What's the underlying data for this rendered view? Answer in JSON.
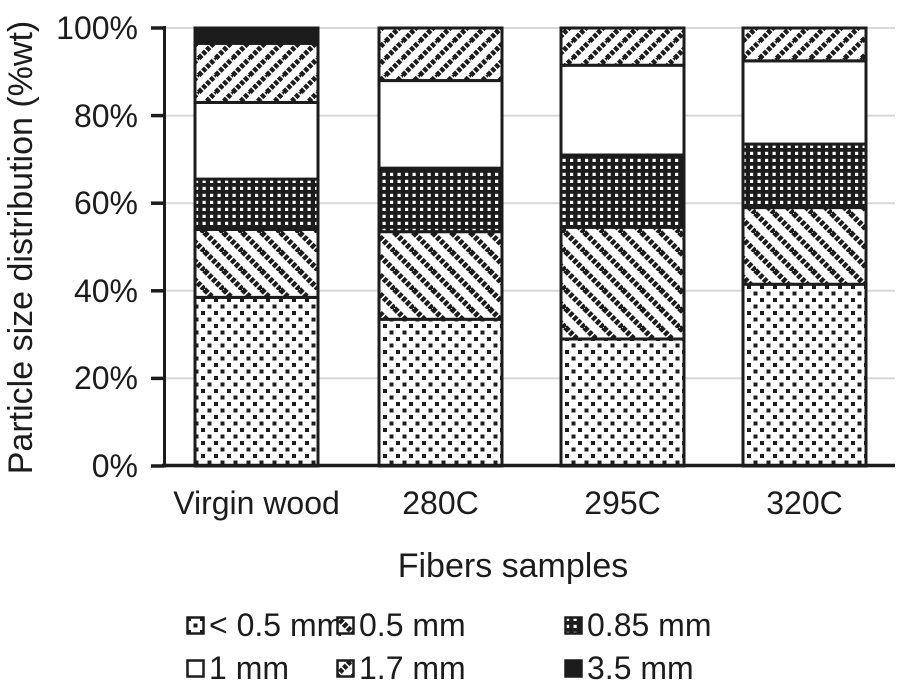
{
  "colors": {
    "ink": "#1c1c1c",
    "gridline": "#d8d8d8",
    "background": "#ffffff"
  },
  "chart_data": {
    "type": "bar",
    "stacked": true,
    "orientation": "vertical",
    "title": "",
    "xlabel": "Fibers samples",
    "ylabel": "Particle size distribution (%wt)",
    "categories": [
      "Virgin wood",
      "280C",
      "295C",
      "320C"
    ],
    "series": [
      {
        "name": "< 0.5 mm",
        "pattern": "dots",
        "values": [
          38.5,
          33.5,
          29.0,
          41.5
        ]
      },
      {
        "name": "0.5 mm",
        "pattern": "diag-back",
        "values": [
          15.5,
          20.0,
          25.5,
          17.5
        ]
      },
      {
        "name": "0.85 mm",
        "pattern": "checker",
        "values": [
          11.5,
          14.5,
          16.5,
          14.5
        ]
      },
      {
        "name": "1 mm",
        "pattern": "plain-white",
        "values": [
          17.5,
          20.0,
          20.5,
          19.0
        ]
      },
      {
        "name": "1.7 mm",
        "pattern": "diag-fwd",
        "values": [
          13.5,
          12.0,
          8.5,
          7.5
        ]
      },
      {
        "name": "3.5 mm",
        "pattern": "solid-black",
        "values": [
          3.5,
          0.0,
          0.0,
          0.0
        ]
      }
    ],
    "y_ticks": [
      "0%",
      "20%",
      "40%",
      "60%",
      "80%",
      "100%"
    ],
    "ylim": [
      0,
      100
    ],
    "grid": true,
    "legend_position": "bottom"
  }
}
